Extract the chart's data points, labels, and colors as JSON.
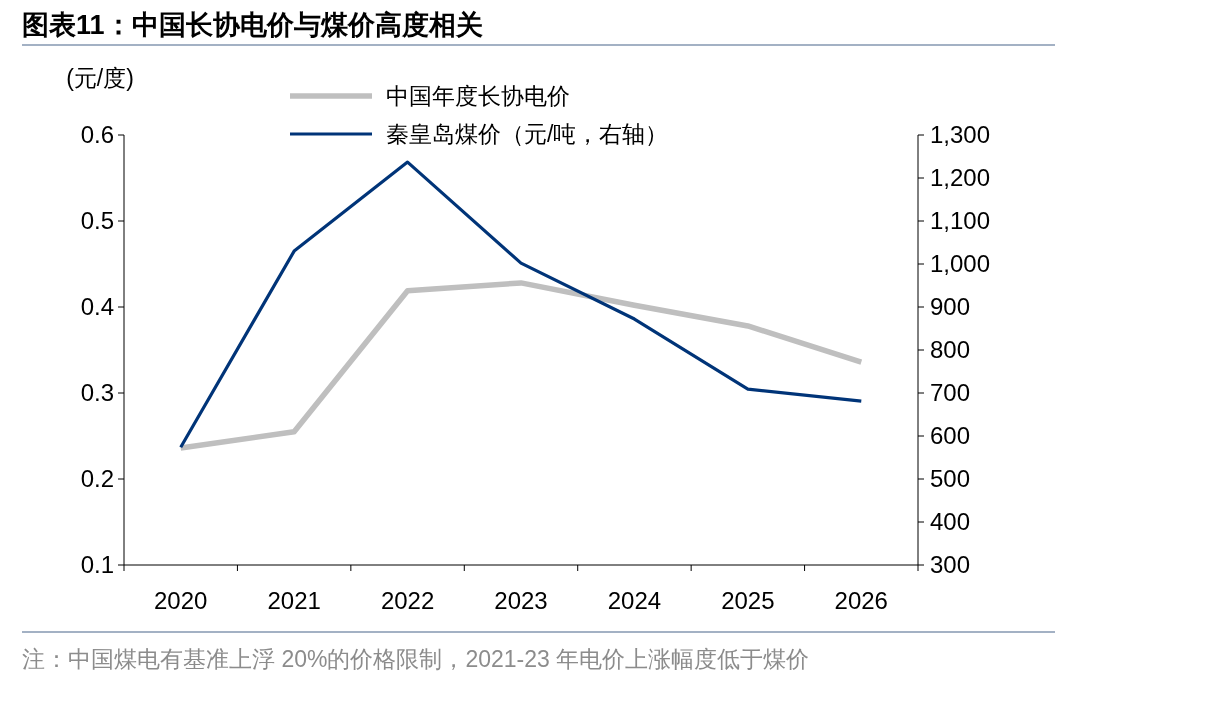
{
  "chart_data": {
    "type": "line",
    "title": "图表11：中国长协电价与煤价高度相关",
    "ylabel": "(元/度)",
    "categories": [
      "2020",
      "2021",
      "2022",
      "2023",
      "2024",
      "2025",
      "2026"
    ],
    "series": [
      {
        "name": "中国年度长协电价",
        "color": "#bfbfbf",
        "values": [
          0.236,
          0.255,
          0.419,
          0.428,
          0.402,
          0.378,
          0.336
        ]
      },
      {
        "name": "秦皇岛煤价（元/吨，右轴）",
        "color": "#003478",
        "axis": "y2",
        "values": [
          574,
          1030,
          1237,
          1002,
          872,
          709,
          681
        ]
      }
    ],
    "ylim": [
      0.1,
      0.6
    ],
    "yticks": [
      0.1,
      0.2,
      0.3,
      0.4,
      0.5,
      0.6
    ],
    "y2lim": [
      300,
      1300
    ],
    "y2ticks": [
      300,
      400,
      500,
      600,
      700,
      800,
      900,
      {
        "value": 1000,
        "label": "1,000"
      },
      {
        "value": 1100,
        "label": "1,100"
      },
      {
        "value": 1200,
        "label": "1,200"
      },
      {
        "value": 1300,
        "label": "1,300"
      }
    ],
    "legend": "top",
    "grid": false,
    "marker": "none",
    "annotations": [
      "注：中国煤电有基准上浮 20%的价格限制，2021-23 年电价上涨幅度低于煤价"
    ]
  }
}
